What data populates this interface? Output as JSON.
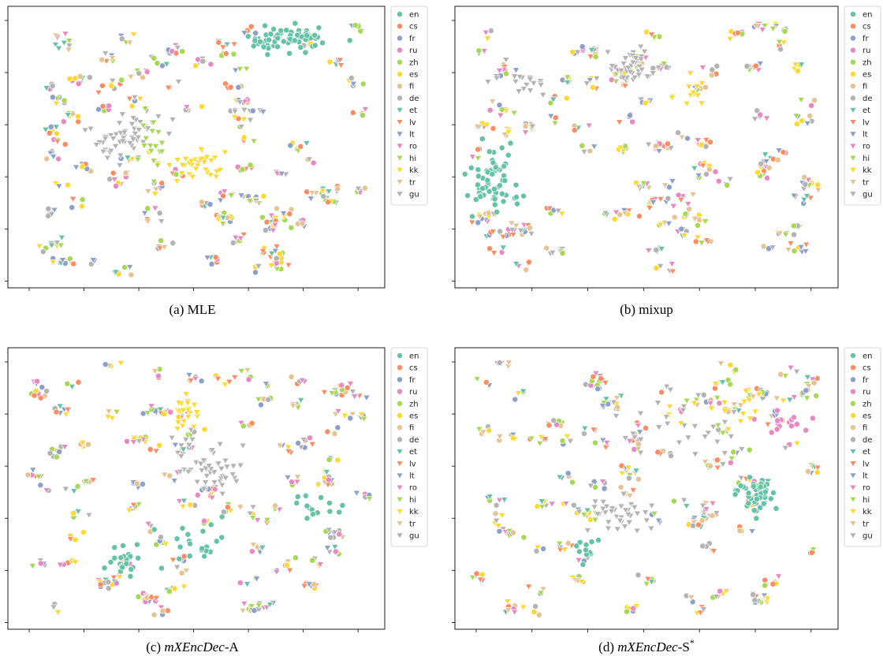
{
  "legend_labels": [
    "en",
    "cs",
    "fr",
    "ru",
    "zh",
    "es",
    "fi",
    "de",
    "et",
    "lv",
    "lt",
    "ro",
    "hi",
    "kk",
    "tr",
    "gu"
  ],
  "colors": {
    "en": "#66c2a5",
    "cs": "#fc8d62",
    "fr": "#8da0cb",
    "ru": "#e78ac3",
    "zh": "#a6d854",
    "es": "#ffd92f",
    "fi": "#e5c494",
    "de": "#b3b3b3",
    "et": "#66c2a5",
    "lv": "#fc8d62",
    "lt": "#8da0cb",
    "ro": "#e78ac3",
    "hi": "#a6d854",
    "kk": "#ffd92f",
    "tr": "#e5c494",
    "gu": "#b3b3b3"
  },
  "marker_shapes": {
    "en": "circle",
    "cs": "circle",
    "fr": "circle",
    "ru": "circle",
    "zh": "circle",
    "es": "circle",
    "fi": "circle",
    "de": "circle",
    "et": "triangle-down",
    "lv": "triangle-down",
    "lt": "triangle-down",
    "ro": "triangle-down",
    "hi": "triangle-down",
    "kk": "triangle-down",
    "tr": "triangle-down",
    "gu": "triangle-down"
  },
  "chart_data": [
    {
      "type": "scatter",
      "caption": "(a) MLE",
      "caption_parts": [
        {
          "text": "(a) MLE",
          "italic": false
        }
      ],
      "axis_tick_labels": "none",
      "legend_placement": "outside-right",
      "clusters": [
        {
          "lang": "en",
          "x": 0.76,
          "y": 0.9,
          "sx": 0.06,
          "sy": 0.025,
          "n": 60
        },
        {
          "lang": "gu",
          "x": 0.3,
          "y": 0.54,
          "sx": 0.05,
          "sy": 0.055,
          "n": 55
        },
        {
          "lang": "kk",
          "x": 0.5,
          "y": 0.44,
          "sx": 0.045,
          "sy": 0.03,
          "n": 35
        },
        {
          "lang": "hi",
          "x": 0.38,
          "y": 0.52,
          "sx": 0.03,
          "sy": 0.06,
          "n": 18
        }
      ],
      "scatter_groups": 85
    },
    {
      "type": "scatter",
      "caption": "(b) mixup",
      "caption_parts": [
        {
          "text": "(b) mixup",
          "italic": false
        }
      ],
      "axis_tick_labels": "none",
      "legend_placement": "outside-right",
      "clusters": [
        {
          "lang": "en",
          "x": 0.08,
          "y": 0.37,
          "sx": 0.035,
          "sy": 0.06,
          "n": 65
        },
        {
          "lang": "gu",
          "x": 0.47,
          "y": 0.8,
          "sx": 0.035,
          "sy": 0.03,
          "n": 40
        },
        {
          "lang": "gu",
          "x": 0.17,
          "y": 0.75,
          "sx": 0.05,
          "sy": 0.035,
          "n": 18
        },
        {
          "lang": "kk",
          "x": 0.62,
          "y": 0.7,
          "sx": 0.02,
          "sy": 0.03,
          "n": 12
        }
      ],
      "scatter_groups": 85
    },
    {
      "type": "scatter",
      "caption": "(c) mXEncDec-A",
      "caption_parts": [
        {
          "text": "(c) ",
          "italic": false
        },
        {
          "text": "mXEncDec",
          "italic": true
        },
        {
          "text": "-A",
          "italic": false
        }
      ],
      "axis_tick_labels": "none",
      "legend_placement": "outside-right",
      "clusters": [
        {
          "lang": "gu",
          "x": 0.53,
          "y": 0.59,
          "sx": 0.045,
          "sy": 0.05,
          "n": 50
        },
        {
          "lang": "kk",
          "x": 0.47,
          "y": 0.78,
          "sx": 0.02,
          "sy": 0.035,
          "n": 25
        },
        {
          "lang": "en",
          "x": 0.3,
          "y": 0.23,
          "sx": 0.02,
          "sy": 0.03,
          "n": 22
        },
        {
          "lang": "en",
          "x": 0.48,
          "y": 0.29,
          "sx": 0.05,
          "sy": 0.045,
          "n": 22
        },
        {
          "lang": "en",
          "x": 0.82,
          "y": 0.42,
          "sx": 0.035,
          "sy": 0.03,
          "n": 14
        }
      ],
      "scatter_groups": 85
    },
    {
      "type": "scatter",
      "caption": "(d) mXEncDec-S*",
      "caption_parts": [
        {
          "text": "(d) ",
          "italic": false
        },
        {
          "text": "mXEncDec",
          "italic": true
        },
        {
          "text": "-S",
          "italic": false
        },
        {
          "text": "*",
          "italic": false,
          "sup": true
        }
      ],
      "axis_tick_labels": "none",
      "legend_placement": "outside-right",
      "clusters": [
        {
          "lang": "en",
          "x": 0.8,
          "y": 0.47,
          "sx": 0.025,
          "sy": 0.03,
          "n": 45
        },
        {
          "lang": "gu",
          "x": 0.42,
          "y": 0.4,
          "sx": 0.04,
          "sy": 0.03,
          "n": 40
        },
        {
          "lang": "gu",
          "x": 0.58,
          "y": 0.72,
          "sx": 0.08,
          "sy": 0.06,
          "n": 25
        },
        {
          "lang": "en",
          "x": 0.34,
          "y": 0.27,
          "sx": 0.015,
          "sy": 0.025,
          "n": 12
        },
        {
          "lang": "ru",
          "x": 0.88,
          "y": 0.75,
          "sx": 0.04,
          "sy": 0.025,
          "n": 14
        },
        {
          "lang": "kk",
          "x": 0.7,
          "y": 0.79,
          "sx": 0.06,
          "sy": 0.04,
          "n": 14
        }
      ],
      "scatter_groups": 85
    }
  ]
}
